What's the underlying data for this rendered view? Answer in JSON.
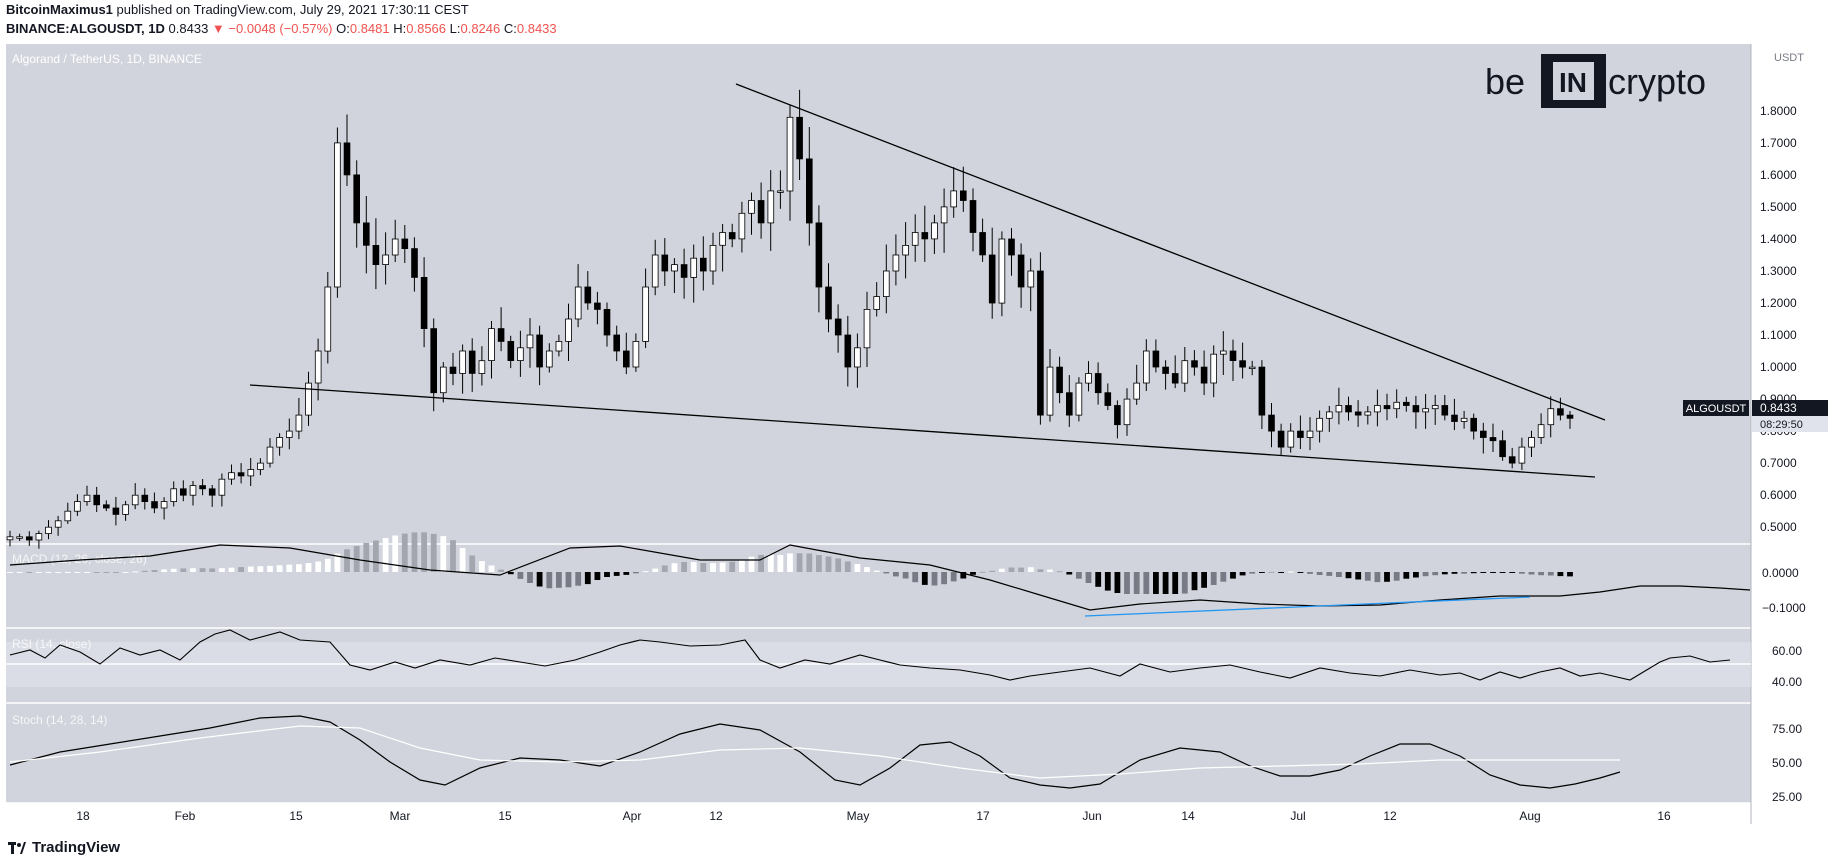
{
  "header": {
    "line1_author": "BitcoinMaximus1",
    "line1_text": "published on TradingView.com, July 29, 2021 17:30:11 CEST",
    "symbol": "BINANCE:ALGOUSDT, 1D",
    "last": "0.8433",
    "change": "−0.0048 (−0.57%)",
    "o_label": "O:",
    "o": "0.8481",
    "h_label": "H:",
    "h": "0.8566",
    "l_label": "L:",
    "l": "0.8246",
    "c_label": "C:",
    "c": "0.8433"
  },
  "main_pane": {
    "label": "Algorand / TetherUS, 1D, BINANCE",
    "currency": "USDT",
    "price_label": "ALGOUSDT",
    "price_value": "0.8433",
    "countdown": "08:29:50"
  },
  "logo": {
    "left": "be",
    "mid": "IN",
    "right": "crypto"
  },
  "macd_pane": {
    "label": "MACD (12, 26, close, 26)",
    "ticks": [
      "0.0000",
      "−0.1000"
    ]
  },
  "rsi_pane": {
    "label": "RSI (14, close)",
    "ticks": [
      "60.00",
      "40.00"
    ]
  },
  "stoch_pane": {
    "label": "Stoch (14, 28, 14)",
    "ticks": [
      "75.00",
      "50.00",
      "25.00"
    ]
  },
  "x_axis": [
    "18",
    "Feb",
    "15",
    "Mar",
    "15",
    "Apr",
    "12",
    "May",
    "17",
    "Jun",
    "14",
    "Jul",
    "12",
    "Aug",
    "16"
  ],
  "footer": {
    "brand": "TradingView"
  },
  "colors": {
    "pane_bg": "#d1d4dc",
    "candle_up": "#ffffff",
    "candle_down": "#000000",
    "trendline": "#000000",
    "macd_trend": "#2196f3"
  },
  "chart_data": {
    "type": "candlestick",
    "title": "Algorand / TetherUS, 1D, BINANCE",
    "y_ticks": [
      "0.5000",
      "0.6000",
      "0.7000",
      "0.8000",
      "0.9000",
      "1.0000",
      "1.1000",
      "1.2000",
      "1.3000",
      "1.4000",
      "1.5000",
      "1.6000",
      "1.7000",
      "1.8000"
    ],
    "ylim": [
      0.46,
      1.99
    ],
    "date_range": [
      "2021-01-09",
      "2021-07-29"
    ],
    "candles_close": [
      0.47,
      0.47,
      0.46,
      0.48,
      0.5,
      0.52,
      0.55,
      0.58,
      0.6,
      0.57,
      0.56,
      0.54,
      0.57,
      0.6,
      0.58,
      0.56,
      0.58,
      0.62,
      0.6,
      0.63,
      0.62,
      0.6,
      0.65,
      0.67,
      0.66,
      0.68,
      0.7,
      0.75,
      0.78,
      0.8,
      0.85,
      0.95,
      1.05,
      1.25,
      1.7,
      1.6,
      1.45,
      1.38,
      1.32,
      1.35,
      1.4,
      1.37,
      1.28,
      1.12,
      0.92,
      1.0,
      0.98,
      1.05,
      0.98,
      1.02,
      1.12,
      1.08,
      1.02,
      1.06,
      1.1,
      1.0,
      1.05,
      1.08,
      1.15,
      1.25,
      1.2,
      1.18,
      1.1,
      1.05,
      1.0,
      1.08,
      1.25,
      1.35,
      1.3,
      1.32,
      1.28,
      1.34,
      1.3,
      1.38,
      1.42,
      1.4,
      1.48,
      1.52,
      1.45,
      1.55,
      1.55,
      1.78,
      1.65,
      1.45,
      1.25,
      1.15,
      1.1,
      1.0,
      1.06,
      1.18,
      1.22,
      1.3,
      1.35,
      1.38,
      1.42,
      1.4,
      1.45,
      1.5,
      1.55,
      1.52,
      1.42,
      1.35,
      1.2,
      1.4,
      1.35,
      1.25,
      1.3,
      0.85,
      1.0,
      0.92,
      0.85,
      0.95,
      0.98,
      0.92,
      0.88,
      0.82,
      0.9,
      0.95,
      1.05,
      1.0,
      0.98,
      0.95,
      1.02,
      1.0,
      0.95,
      1.04,
      1.05,
      1.02,
      1.0,
      1.0,
      0.85,
      0.8,
      0.75,
      0.8,
      0.78,
      0.8,
      0.84,
      0.86,
      0.88,
      0.86,
      0.85,
      0.86,
      0.88,
      0.87,
      0.89,
      0.88,
      0.86,
      0.87,
      0.88,
      0.85,
      0.83,
      0.84,
      0.8,
      0.78,
      0.77,
      0.72,
      0.7,
      0.75,
      0.78,
      0.82,
      0.87,
      0.85,
      0.84
    ]
  }
}
